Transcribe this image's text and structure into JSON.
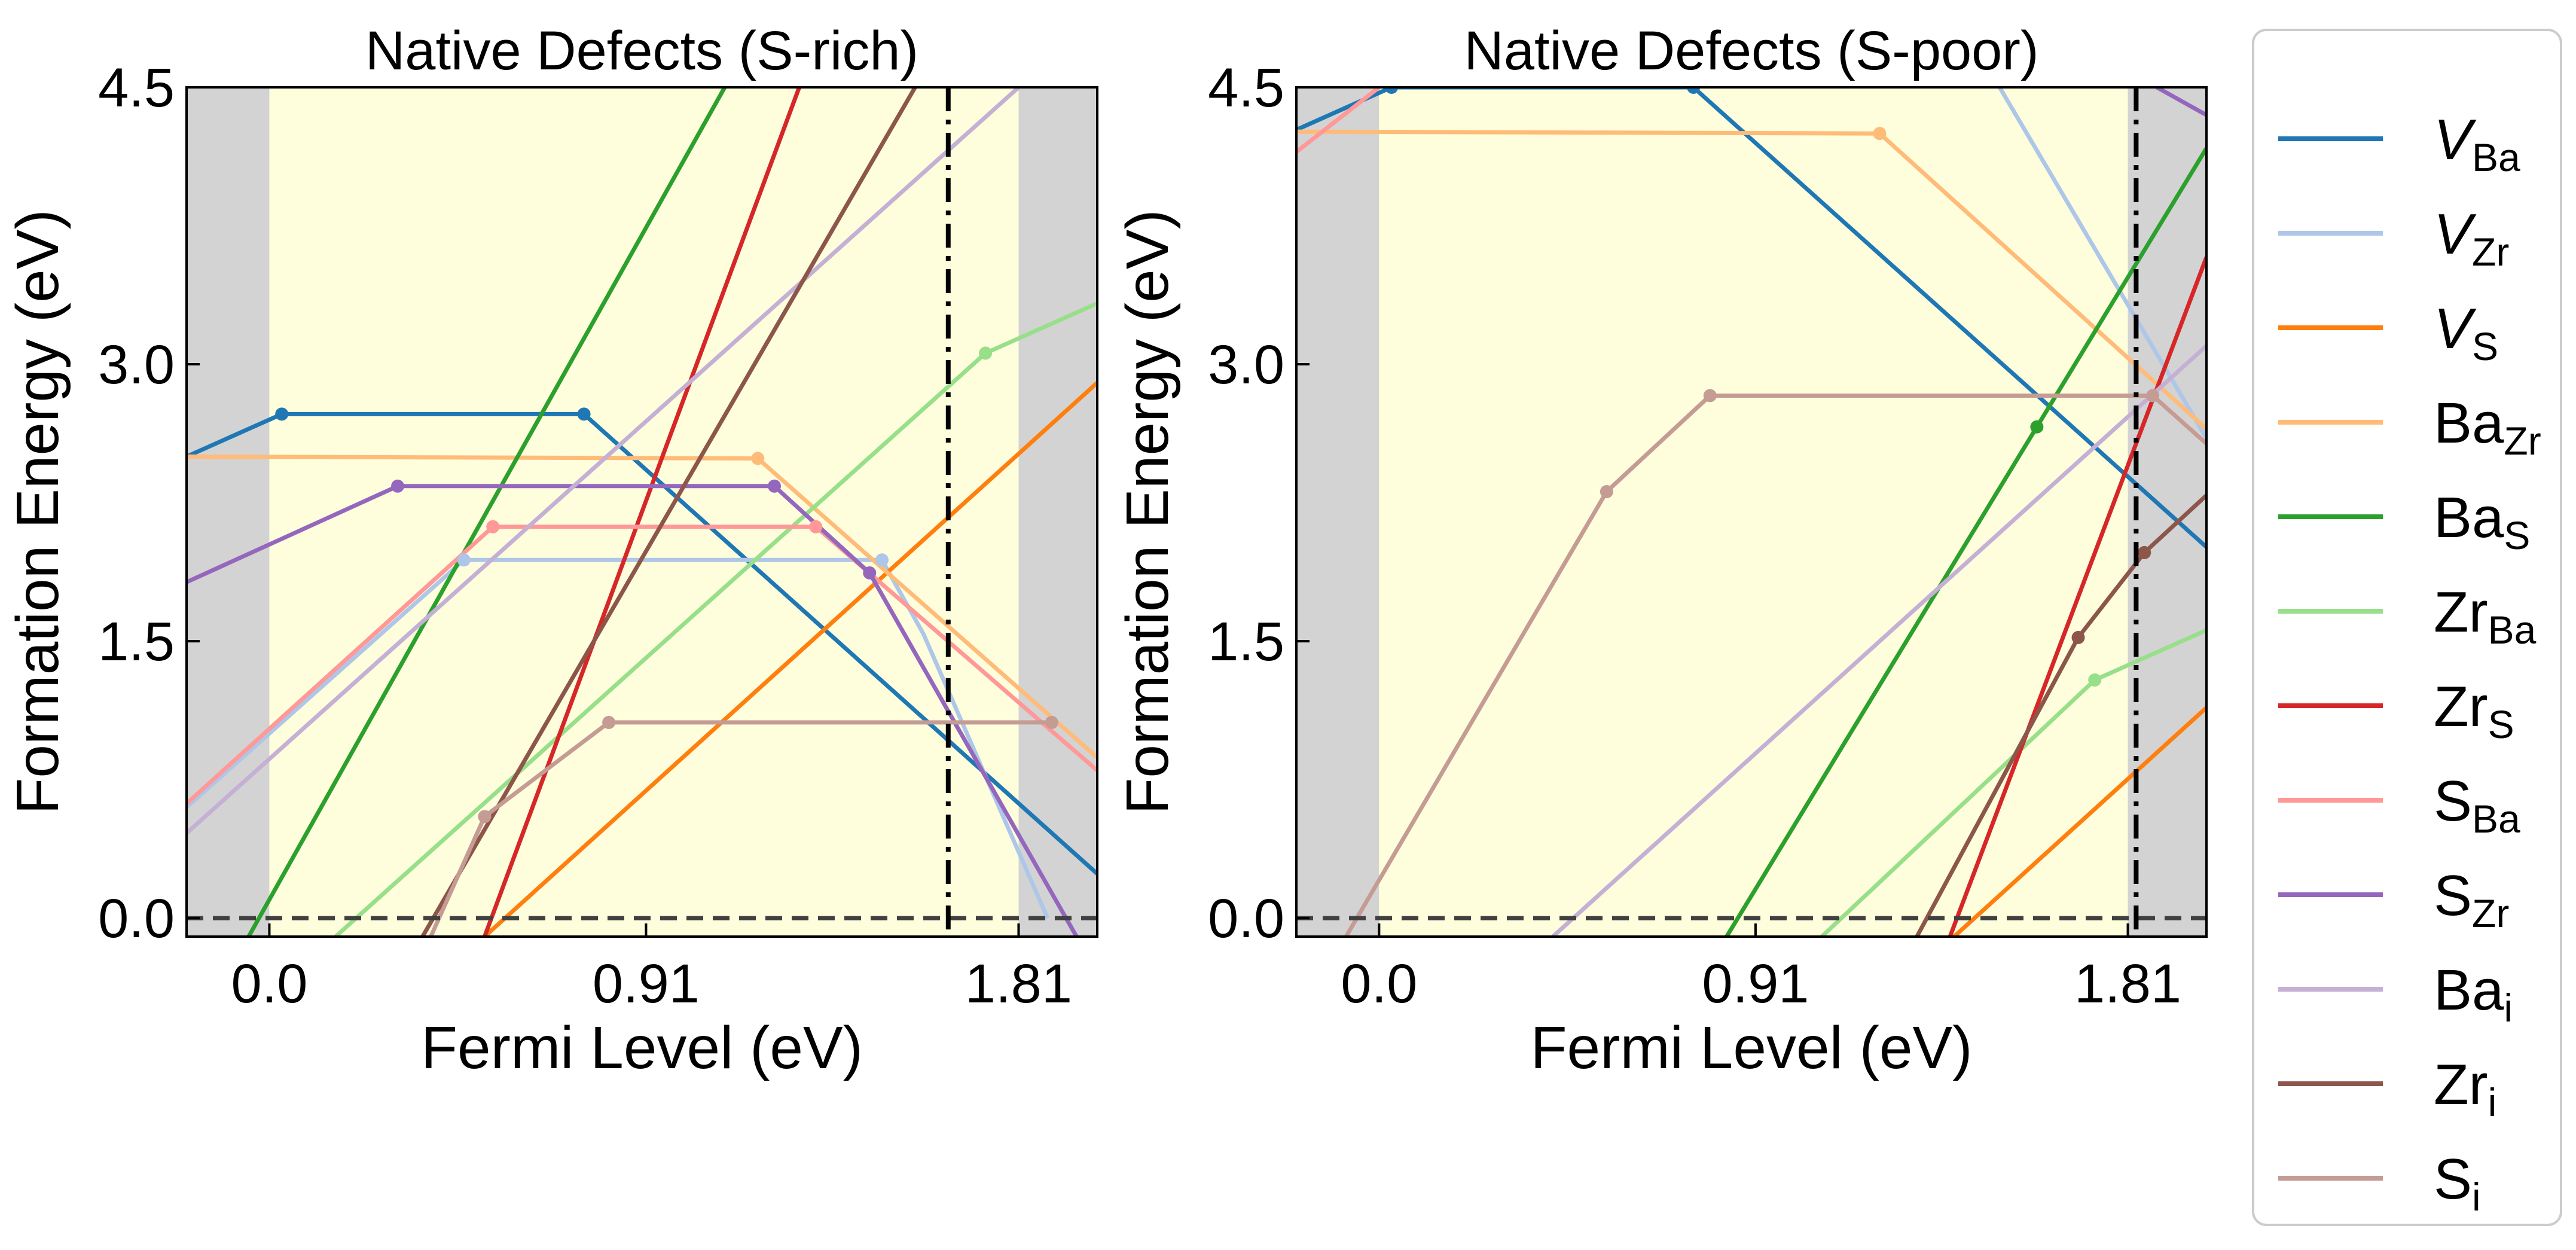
{
  "colors": {
    "V_Ba": "#1f77b4",
    "V_Zr": "#aec7e8",
    "V_S": "#ff7f0e",
    "Ba_Zr": "#ffbb78",
    "Ba_S": "#2ca02c",
    "Zr_Ba": "#98df8a",
    "Zr_S": "#d62728",
    "S_Ba": "#ff9896",
    "S_Zr": "#9467bd",
    "Ba_i": "#c5b0d5",
    "Zr_i": "#8c564b",
    "S_i": "#c49c94",
    "gap_fill": "#fefedd",
    "outside_fill": "#d3d3d3",
    "zero_line": "#404040"
  },
  "legend": [
    {
      "key": "V_Ba",
      "base": "V",
      "sub": "Ba",
      "italic": true
    },
    {
      "key": "V_Zr",
      "base": "V",
      "sub": "Zr",
      "italic": true
    },
    {
      "key": "V_S",
      "base": "V",
      "sub": "S",
      "italic": true
    },
    {
      "key": "Ba_Zr",
      "base": "Ba",
      "sub": "Zr",
      "italic": false
    },
    {
      "key": "Ba_S",
      "base": "Ba",
      "sub": "S",
      "italic": false
    },
    {
      "key": "Zr_Ba",
      "base": "Zr",
      "sub": "Ba",
      "italic": false
    },
    {
      "key": "Zr_S",
      "base": "Zr",
      "sub": "S",
      "italic": false
    },
    {
      "key": "S_Ba",
      "base": "S",
      "sub": "Ba",
      "italic": false
    },
    {
      "key": "S_Zr",
      "base": "S",
      "sub": "Zr",
      "italic": false
    },
    {
      "key": "Ba_i",
      "base": "Ba",
      "sub": "i",
      "italic": false
    },
    {
      "key": "Zr_i",
      "base": "Zr",
      "sub": "i",
      "italic": false
    },
    {
      "key": "S_i",
      "base": "S",
      "sub": "i",
      "italic": false
    }
  ],
  "chart_data": [
    {
      "type": "line",
      "title": "Native Defects (S-rich)",
      "xlabel": "Fermi Level (eV)",
      "ylabel": "Formation Energy (eV)",
      "xlim": [
        -0.2,
        2.0
      ],
      "ylim": [
        -0.1,
        4.5
      ],
      "xticks": [
        0.0,
        0.91,
        1.81
      ],
      "xtick_labels": [
        "0.0",
        "0.91",
        "1.81"
      ],
      "yticks": [
        0.0,
        1.5,
        3.0,
        4.5
      ],
      "ytick_labels": [
        "0.0",
        "1.5",
        "3.0",
        "4.5"
      ],
      "band_gap": [
        0.0,
        1.81
      ],
      "fermi_level_marker": 1.64,
      "series": [
        {
          "key": "V_Ba",
          "x": [
            -0.2,
            0.03,
            0.76,
            2.0
          ],
          "y": [
            2.5,
            2.73,
            2.73,
            0.24
          ],
          "kinks": [
            0.03,
            0.76
          ]
        },
        {
          "key": "V_Zr",
          "x": [
            -0.2,
            0.47,
            1.48,
            1.58,
            1.88
          ],
          "y": [
            0.6,
            1.94,
            1.94,
            1.54,
            0.0
          ],
          "kinks": [
            0.47,
            1.48
          ]
        },
        {
          "key": "V_S",
          "x": [
            0.52,
            2.0
          ],
          "y": [
            -0.1,
            2.9
          ]
        },
        {
          "key": "Ba_Zr",
          "x": [
            -0.2,
            1.18,
            2.0
          ],
          "y": [
            2.5,
            2.49,
            0.87
          ],
          "kinks": [
            1.18
          ]
        },
        {
          "key": "Ba_S",
          "x": [
            -0.05,
            1.1
          ],
          "y": [
            -0.1,
            4.5
          ]
        },
        {
          "key": "Zr_Ba",
          "x": [
            0.16,
            1.73,
            2.0
          ],
          "y": [
            -0.1,
            3.06,
            3.33
          ],
          "kinks": [
            1.73
          ]
        },
        {
          "key": "Zr_S",
          "x": [
            0.52,
            1.28
          ],
          "y": [
            -0.1,
            4.5
          ]
        },
        {
          "key": "S_Ba",
          "x": [
            -0.2,
            0.54,
            1.32,
            2.0
          ],
          "y": [
            0.62,
            2.12,
            2.12,
            0.8
          ],
          "kinks": [
            0.54,
            1.32
          ]
        },
        {
          "key": "S_Zr",
          "x": [
            -0.2,
            0.31,
            1.22,
            1.45,
            1.95
          ],
          "y": [
            1.82,
            2.34,
            2.34,
            1.87,
            -0.1
          ],
          "kinks": [
            0.31,
            1.22,
            1.45
          ]
        },
        {
          "key": "Ba_i",
          "x": [
            -0.2,
            1.81
          ],
          "y": [
            0.46,
            4.5
          ]
        },
        {
          "key": "Zr_i",
          "x": [
            0.37,
            1.56
          ],
          "y": [
            -0.1,
            4.5
          ]
        },
        {
          "key": "S_i",
          "x": [
            0.39,
            0.52,
            0.82,
            1.89
          ],
          "y": [
            -0.1,
            0.55,
            1.06,
            1.06
          ],
          "kinks": [
            0.52,
            0.82,
            1.89
          ]
        }
      ]
    },
    {
      "type": "line",
      "title": "Native Defects (S-poor)",
      "xlabel": "Fermi Level (eV)",
      "ylabel": "Formation Energy (eV)",
      "xlim": [
        -0.2,
        2.0
      ],
      "ylim": [
        -0.1,
        4.5
      ],
      "xticks": [
        0.0,
        0.91,
        1.81
      ],
      "xtick_labels": [
        "0.0",
        "0.91",
        "1.81"
      ],
      "yticks": [
        0.0,
        1.5,
        3.0,
        4.5
      ],
      "ytick_labels": [
        "0.0",
        "1.5",
        "3.0",
        "4.5"
      ],
      "band_gap": [
        0.0,
        1.81
      ],
      "fermi_level_marker": 1.83,
      "series": [
        {
          "key": "V_Ba",
          "x": [
            -0.2,
            0.03,
            0.76,
            2.0
          ],
          "y": [
            4.27,
            4.5,
            4.5,
            2.01
          ],
          "kinks": [
            0.03,
            0.76
          ]
        },
        {
          "key": "V_Zr",
          "x": [
            1.5,
            2.0
          ],
          "y": [
            4.5,
            2.6
          ]
        },
        {
          "key": "V_S",
          "x": [
            1.39,
            2.0
          ],
          "y": [
            -0.1,
            1.14
          ]
        },
        {
          "key": "Ba_Zr",
          "x": [
            -0.2,
            1.21,
            2.0
          ],
          "y": [
            4.26,
            4.25,
            2.65
          ],
          "kinks": [
            1.21
          ]
        },
        {
          "key": "Ba_S",
          "x": [
            0.84,
            2.0
          ],
          "y": [
            -0.1,
            4.17
          ],
          "kinks": [
            1.59
          ]
        },
        {
          "key": "Zr_Ba",
          "x": [
            1.07,
            1.73,
            2.0
          ],
          "y": [
            -0.1,
            1.29,
            1.56
          ],
          "kinks": [
            1.73
          ]
        },
        {
          "key": "Zr_S",
          "x": [
            1.38,
            2.0
          ],
          "y": [
            -0.1,
            3.58
          ]
        },
        {
          "key": "S_Ba",
          "x": [
            -0.2,
            0.0
          ],
          "y": [
            4.15,
            4.5
          ]
        },
        {
          "key": "S_Zr",
          "x": [
            1.88,
            2.0
          ],
          "y": [
            4.5,
            4.35
          ]
        },
        {
          "key": "Ba_i",
          "x": [
            0.42,
            2.0
          ],
          "y": [
            -0.1,
            3.1
          ]
        },
        {
          "key": "Zr_i",
          "x": [
            1.3,
            1.69,
            1.85,
            2.0
          ],
          "y": [
            -0.1,
            1.52,
            1.98,
            2.29
          ],
          "kinks": [
            1.69,
            1.85
          ]
        },
        {
          "key": "S_i",
          "x": [
            -0.08,
            0.55,
            0.8,
            1.87,
            2.0
          ],
          "y": [
            -0.1,
            2.31,
            2.83,
            2.83,
            2.57
          ],
          "kinks": [
            0.55,
            0.8,
            1.87
          ]
        }
      ]
    }
  ]
}
